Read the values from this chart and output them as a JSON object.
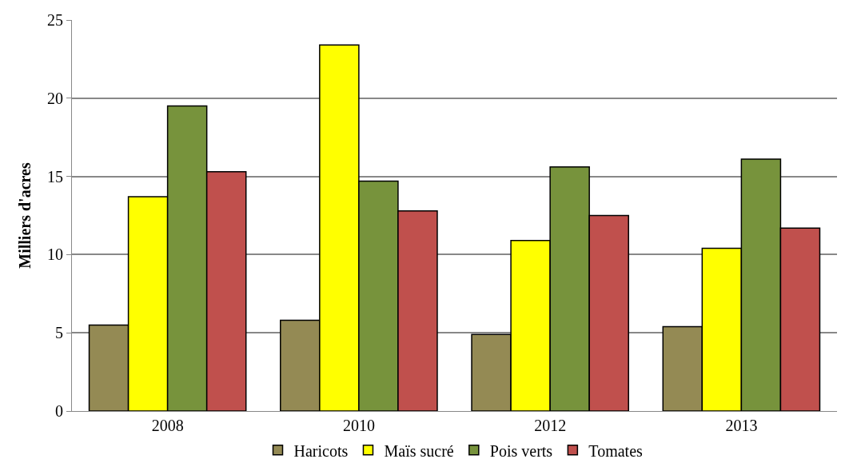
{
  "chart_data": {
    "type": "bar",
    "ylabel": "Milliers d'acres",
    "categories": [
      "2008",
      "2010",
      "2012",
      "2013"
    ],
    "series": [
      {
        "name": "Haricots",
        "color": "#948a54",
        "values": [
          5.5,
          5.8,
          4.9,
          5.4
        ]
      },
      {
        "name": "Maïs sucré",
        "color": "#ffff00",
        "values": [
          13.7,
          23.4,
          10.9,
          10.4
        ]
      },
      {
        "name": "Pois verts",
        "color": "#77933c",
        "values": [
          19.5,
          14.7,
          15.6,
          16.1
        ]
      },
      {
        "name": "Tomates",
        "color": "#c0504d",
        "values": [
          15.3,
          12.8,
          12.5,
          11.7
        ]
      }
    ],
    "ylim": [
      0,
      25
    ],
    "yticks": [
      0,
      5,
      10,
      15,
      20,
      25
    ],
    "grid": "y",
    "legend": "bottom"
  }
}
